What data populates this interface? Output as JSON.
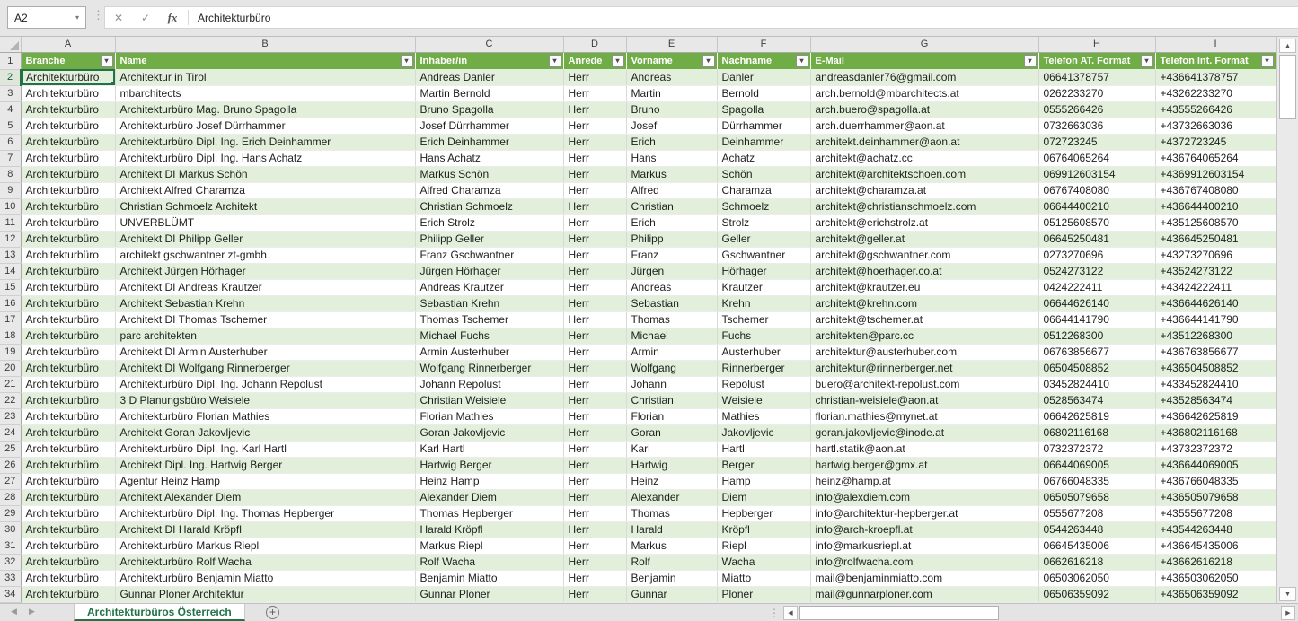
{
  "colors": {
    "header_green": "#70AD47",
    "band_green": "#E2EFDA",
    "tab_green": "#217346"
  },
  "icons": {
    "dropdown": "▾",
    "up": "▲",
    "down": "▼",
    "left": "◀",
    "right": "▶",
    "dots": "⋮",
    "cancel": "✕",
    "confirm": "✓",
    "fx": "fx",
    "add": "+"
  },
  "formula_bar": {
    "name_box": "A2",
    "formula_value": "Architekturbüro"
  },
  "sheet_tabs": {
    "active": "Architekturbüros Österreich"
  },
  "grid": {
    "column_letters": [
      "A",
      "B",
      "C",
      "D",
      "E",
      "F",
      "G",
      "H",
      "I"
    ],
    "headers": [
      "Branche",
      "Name",
      "Inhaber/in",
      "Anrede",
      "Vorname",
      "Nachname",
      "E-Mail",
      "Telefon AT. Format",
      "Telefon Int. Format"
    ],
    "rows": [
      [
        "2",
        "Architekturbüro",
        "Architektur in Tirol",
        "Andreas Danler",
        "Herr",
        "Andreas",
        "Danler",
        "andreasdanler76@gmail.com",
        "06641378757",
        "+436641378757"
      ],
      [
        "3",
        "Architekturbüro",
        "mbarchitects",
        "Martin Bernold",
        "Herr",
        "Martin",
        "Bernold",
        "arch.bernold@mbarchitects.at",
        "0262233270",
        "+43262233270"
      ],
      [
        "4",
        "Architekturbüro",
        "Architekturbüro Mag. Bruno Spagolla",
        "Bruno Spagolla",
        "Herr",
        "Bruno",
        "Spagolla",
        "arch.buero@spagolla.at",
        "0555266426",
        "+43555266426"
      ],
      [
        "5",
        "Architekturbüro",
        "Architekturbüro Josef Dürrhammer",
        "Josef Dürrhammer",
        "Herr",
        "Josef",
        "Dürrhammer",
        "arch.duerrhammer@aon.at",
        "0732663036",
        "+43732663036"
      ],
      [
        "6",
        "Architekturbüro",
        "Architekturbüro Dipl. Ing. Erich Deinhammer",
        "Erich Deinhammer",
        "Herr",
        "Erich",
        "Deinhammer",
        "architekt.deinhammer@aon.at",
        "072723245",
        "+4372723245"
      ],
      [
        "7",
        "Architekturbüro",
        "Architekturbüro Dipl. Ing. Hans Achatz",
        "Hans Achatz",
        "Herr",
        "Hans",
        "Achatz",
        "architekt@achatz.cc",
        "06764065264",
        "+436764065264"
      ],
      [
        "8",
        "Architekturbüro",
        "Architekt DI Markus Schön",
        "Markus Schön",
        "Herr",
        "Markus",
        "Schön",
        "architekt@architektschoen.com",
        "069912603154",
        "+4369912603154"
      ],
      [
        "9",
        "Architekturbüro",
        "Architekt Alfred Charamza",
        "Alfred Charamza",
        "Herr",
        "Alfred",
        "Charamza",
        "architekt@charamza.at",
        "06767408080",
        "+436767408080"
      ],
      [
        "10",
        "Architekturbüro",
        "Christian Schmoelz Architekt",
        "Christian Schmoelz",
        "Herr",
        "Christian",
        "Schmoelz",
        "architekt@christianschmoelz.com",
        "06644400210",
        "+436644400210"
      ],
      [
        "11",
        "Architekturbüro",
        "UNVERBLÜMT",
        "Erich Strolz",
        "Herr",
        "Erich",
        "Strolz",
        "architekt@erichstrolz.at",
        "05125608570",
        "+435125608570"
      ],
      [
        "12",
        "Architekturbüro",
        "Architekt DI Philipp Geller",
        "Philipp Geller",
        "Herr",
        "Philipp",
        "Geller",
        "architekt@geller.at",
        "06645250481",
        "+436645250481"
      ],
      [
        "13",
        "Architekturbüro",
        "architekt gschwantner zt-gmbh",
        "Franz Gschwantner",
        "Herr",
        "Franz",
        "Gschwantner",
        "architekt@gschwantner.com",
        "0273270696",
        "+43273270696"
      ],
      [
        "14",
        "Architekturbüro",
        "Architekt Jürgen Hörhager",
        "Jürgen Hörhager",
        "Herr",
        "Jürgen",
        "Hörhager",
        "architekt@hoerhager.co.at",
        "0524273122",
        "+43524273122"
      ],
      [
        "15",
        "Architekturbüro",
        "Architekt DI Andreas Krautzer",
        "Andreas Krautzer",
        "Herr",
        "Andreas",
        "Krautzer",
        "architekt@krautzer.eu",
        "0424222411",
        "+43424222411"
      ],
      [
        "16",
        "Architekturbüro",
        "Architekt Sebastian Krehn",
        "Sebastian Krehn",
        "Herr",
        "Sebastian",
        "Krehn",
        "architekt@krehn.com",
        "06644626140",
        "+436644626140"
      ],
      [
        "17",
        "Architekturbüro",
        "Architekt DI Thomas Tschemer",
        "Thomas Tschemer",
        "Herr",
        "Thomas",
        "Tschemer",
        "architekt@tschemer.at",
        "06644141790",
        "+436644141790"
      ],
      [
        "18",
        "Architekturbüro",
        "parc architekten",
        "Michael Fuchs",
        "Herr",
        "Michael",
        "Fuchs",
        "architekten@parc.cc",
        "0512268300",
        "+43512268300"
      ],
      [
        "19",
        "Architekturbüro",
        "Architekt DI Armin Austerhuber",
        "Armin Austerhuber",
        "Herr",
        "Armin",
        "Austerhuber",
        "architektur@austerhuber.com",
        "06763856677",
        "+436763856677"
      ],
      [
        "20",
        "Architekturbüro",
        "Architekt DI Wolfgang Rinnerberger",
        "Wolfgang Rinnerberger",
        "Herr",
        "Wolfgang",
        "Rinnerberger",
        "architektur@rinnerberger.net",
        "06504508852",
        "+436504508852"
      ],
      [
        "21",
        "Architekturbüro",
        "Architekturbüro Dipl. Ing. Johann Repolust",
        "Johann Repolust",
        "Herr",
        "Johann",
        "Repolust",
        "buero@architekt-repolust.com",
        "03452824410",
        "+433452824410"
      ],
      [
        "22",
        "Architekturbüro",
        "3 D Planungsbüro Weisiele",
        "Christian Weisiele",
        "Herr",
        "Christian",
        "Weisiele",
        "christian-weisiele@aon.at",
        "0528563474",
        "+43528563474"
      ],
      [
        "23",
        "Architekturbüro",
        "Architekturbüro Florian Mathies",
        "Florian Mathies",
        "Herr",
        "Florian",
        "Mathies",
        "florian.mathies@mynet.at",
        "06642625819",
        "+436642625819"
      ],
      [
        "24",
        "Architekturbüro",
        "Architekt Goran Jakovljevic",
        "Goran Jakovljevic",
        "Herr",
        "Goran",
        "Jakovljevic",
        "goran.jakovljevic@inode.at",
        "06802116168",
        "+436802116168"
      ],
      [
        "25",
        "Architekturbüro",
        "Architekturbüro Dipl. Ing. Karl Hartl",
        "Karl Hartl",
        "Herr",
        "Karl",
        "Hartl",
        "hartl.statik@aon.at",
        "0732372372",
        "+43732372372"
      ],
      [
        "26",
        "Architekturbüro",
        "Architekt Dipl. Ing. Hartwig Berger",
        "Hartwig Berger",
        "Herr",
        "Hartwig",
        "Berger",
        "hartwig.berger@gmx.at",
        "06644069005",
        "+436644069005"
      ],
      [
        "27",
        "Architekturbüro",
        "Agentur Heinz Hamp",
        "Heinz Hamp",
        "Herr",
        "Heinz",
        "Hamp",
        "heinz@hamp.at",
        "06766048335",
        "+436766048335"
      ],
      [
        "28",
        "Architekturbüro",
        "Architekt Alexander Diem",
        "Alexander Diem",
        "Herr",
        "Alexander",
        "Diem",
        "info@alexdiem.com",
        "06505079658",
        "+436505079658"
      ],
      [
        "29",
        "Architekturbüro",
        "Architekturbüro Dipl. Ing. Thomas Hepberger",
        "Thomas Hepberger",
        "Herr",
        "Thomas",
        "Hepberger",
        "info@architektur-hepberger.at",
        "0555677208",
        "+43555677208"
      ],
      [
        "30",
        "Architekturbüro",
        "Architekt DI Harald Kröpfl",
        "Harald Kröpfl",
        "Herr",
        "Harald",
        "Kröpfl",
        "info@arch-kroepfl.at",
        "0544263448",
        "+43544263448"
      ],
      [
        "31",
        "Architekturbüro",
        "Architekturbüro Markus Riepl",
        "Markus Riepl",
        "Herr",
        "Markus",
        "Riepl",
        "info@markusriepl.at",
        "06645435006",
        "+436645435006"
      ],
      [
        "32",
        "Architekturbüro",
        "Architekturbüro Rolf Wacha",
        "Rolf Wacha",
        "Herr",
        "Rolf",
        "Wacha",
        "info@rolfwacha.com",
        "0662616218",
        "+43662616218"
      ],
      [
        "33",
        "Architekturbüro",
        "Architekturbüro Benjamin Miatto",
        "Benjamin Miatto",
        "Herr",
        "Benjamin",
        "Miatto",
        "mail@benjaminmiatto.com",
        "06503062050",
        "+436503062050"
      ],
      [
        "34",
        "Architekturbüro",
        "Gunnar Ploner Architektur",
        "Gunnar Ploner",
        "Herr",
        "Gunnar",
        "Ploner",
        "mail@gunnarploner.com",
        "06506359092",
        "+436506359092"
      ]
    ]
  }
}
